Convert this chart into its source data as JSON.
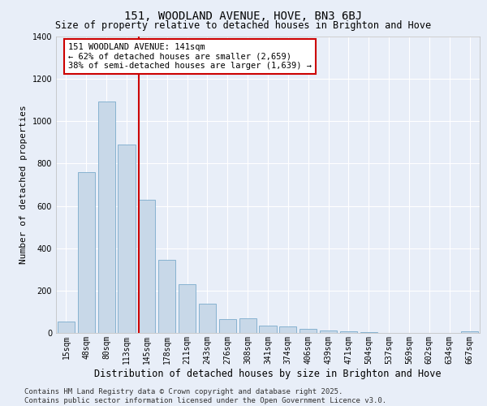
{
  "title": "151, WOODLAND AVENUE, HOVE, BN3 6BJ",
  "subtitle": "Size of property relative to detached houses in Brighton and Hove",
  "xlabel": "Distribution of detached houses by size in Brighton and Hove",
  "ylabel": "Number of detached properties",
  "categories": [
    "15sqm",
    "48sqm",
    "80sqm",
    "113sqm",
    "145sqm",
    "178sqm",
    "211sqm",
    "243sqm",
    "276sqm",
    "308sqm",
    "341sqm",
    "374sqm",
    "406sqm",
    "439sqm",
    "471sqm",
    "504sqm",
    "537sqm",
    "569sqm",
    "602sqm",
    "634sqm",
    "667sqm"
  ],
  "values": [
    55,
    760,
    1095,
    890,
    630,
    345,
    230,
    140,
    65,
    70,
    35,
    30,
    18,
    12,
    8,
    2,
    0,
    0,
    0,
    0,
    7
  ],
  "bar_color": "#c8d8e8",
  "bar_edge_color": "#7aabcc",
  "vline_color": "#cc0000",
  "annotation_text": "151 WOODLAND AVENUE: 141sqm\n← 62% of detached houses are smaller (2,659)\n38% of semi-detached houses are larger (1,639) →",
  "annotation_box_color": "#cc0000",
  "ylim": [
    0,
    1400
  ],
  "yticks": [
    0,
    200,
    400,
    600,
    800,
    1000,
    1200,
    1400
  ],
  "bg_color": "#e8eef8",
  "plot_bg_color": "#e8eef8",
  "footer": "Contains HM Land Registry data © Crown copyright and database right 2025.\nContains public sector information licensed under the Open Government Licence v3.0.",
  "title_fontsize": 10,
  "subtitle_fontsize": 8.5,
  "xlabel_fontsize": 8.5,
  "ylabel_fontsize": 8,
  "tick_fontsize": 7,
  "annotation_fontsize": 7.5,
  "footer_fontsize": 6.5
}
